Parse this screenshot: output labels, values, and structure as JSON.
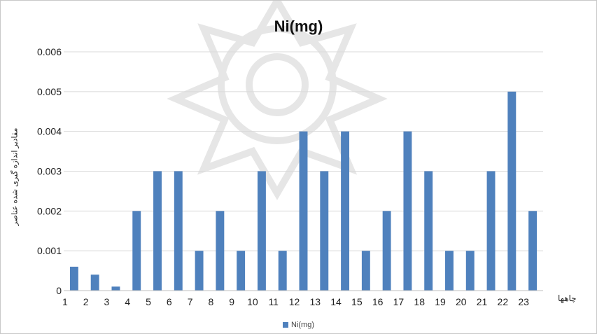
{
  "chart_data": {
    "type": "bar",
    "title": "Ni(mg)",
    "xlabel": "چاهها",
    "ylabel": "مقادیر اندازه گیری شده عناصر",
    "categories": [
      "1",
      "2",
      "3",
      "4",
      "5",
      "6",
      "7",
      "8",
      "9",
      "10",
      "11",
      "12",
      "13",
      "14",
      "15",
      "16",
      "17",
      "18",
      "19",
      "20",
      "21",
      "22",
      "23"
    ],
    "series": [
      {
        "name": "Ni(mg)",
        "values": [
          0.0006,
          0.0004,
          0.0001,
          0.002,
          0.003,
          0.003,
          0.001,
          0.002,
          0.001,
          0.003,
          0.001,
          0.004,
          0.003,
          0.004,
          0.001,
          0.002,
          0.004,
          0.003,
          0.001,
          0.001,
          0.003,
          0.005,
          0.002
        ],
        "color": "#4f81bd"
      }
    ],
    "ylim": [
      0,
      0.006
    ],
    "yticks": [
      "0",
      "0.001",
      "0.002",
      "0.003",
      "0.004",
      "0.005",
      "0.006"
    ],
    "grid": true,
    "legend": "bottom"
  },
  "colors": {
    "bar": "#4f81bd",
    "gridline": "#d9d9d9",
    "watermark": "#d0d0d0"
  }
}
